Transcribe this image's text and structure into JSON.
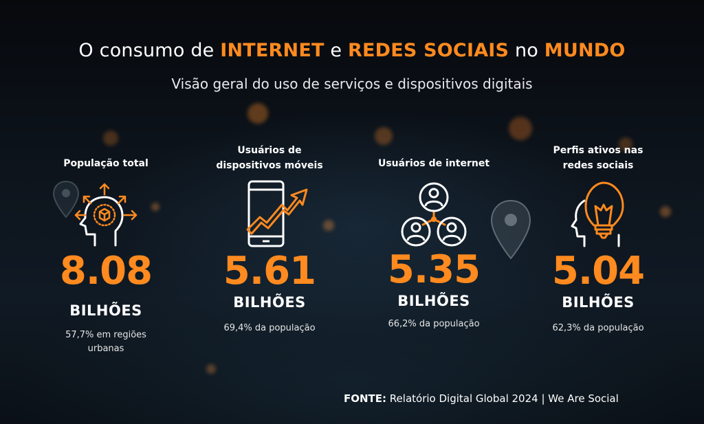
{
  "header": {
    "title_parts": [
      "O consumo de ",
      "INTERNET",
      " e ",
      "REDES SOCIAIS",
      " no ",
      "MUNDO"
    ],
    "subtitle": "Visão geral do uso de serviços e dispositivos digitais"
  },
  "stats": [
    {
      "label_lines": [
        "População total"
      ],
      "icon": "head-box-arrows-icon",
      "value": "8.08",
      "unit": "BILHÕES",
      "note_lines": [
        "57,7% em regiões",
        "urbanas"
      ]
    },
    {
      "label_lines": [
        "Usuários de",
        "dispositivos móveis"
      ],
      "icon": "smartphone-growth-icon",
      "value": "5.61",
      "unit": "BILHÕES",
      "note_lines": [
        "69,4% da população"
      ]
    },
    {
      "label_lines": [
        "Usuários de internet"
      ],
      "icon": "users-network-icon",
      "value": "5.35",
      "unit": "BILHÕES",
      "note_lines": [
        "66,2% da população"
      ]
    },
    {
      "label_lines": [
        "Perfis ativos nas",
        "redes sociais"
      ],
      "icon": "head-lightbulb-icon",
      "value": "5.04",
      "unit": "BILHÕES",
      "note_lines": [
        "62,3% da população"
      ]
    }
  ],
  "footer": {
    "source_label": "FONTE:",
    "source_text": " Relatório Digital Global 2024 | We Are Social"
  },
  "colors": {
    "accent": "#ff8a1f",
    "text": "#ffffff",
    "background": "#0b1018"
  }
}
